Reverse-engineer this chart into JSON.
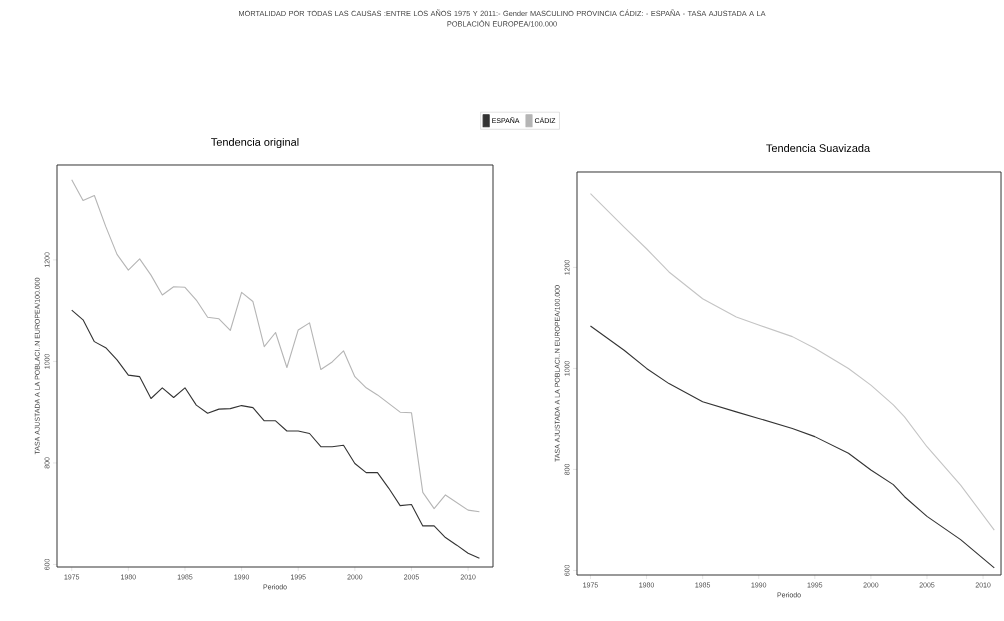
{
  "chart_data": [
    {
      "type": "line",
      "title": "MORTALIDAD POR TODAS LAS CAUSAS :ENTRE LOS AÑOS 1975 Y 2011:- Gender MASCULINO PROVINCIA CÁDIZ: - ESPAÑA - TASA AJUSTADA A LA POBLACIÓN EUROPEA/100.000",
      "subtitle": "Tendencia original",
      "xlabel": "Periodo",
      "ylabel": "TASA AJUSTADA A LA POBLACI..N EUROPEA/100.000",
      "x": [
        1975,
        1976,
        1977,
        1978,
        1979,
        1980,
        1981,
        1982,
        1983,
        1984,
        1985,
        1986,
        1987,
        1988,
        1989,
        1990,
        1991,
        1992,
        1993,
        1994,
        1995,
        1996,
        1997,
        1998,
        1999,
        2000,
        2001,
        2002,
        2003,
        2004,
        2005,
        2006,
        2007,
        2008,
        2009,
        2010,
        2011
      ],
      "series": [
        {
          "name": "ESPAÑA",
          "color": "#333333",
          "values": [
            1101,
            1082,
            1039,
            1027,
            1003,
            973,
            970,
            927,
            948,
            929,
            948,
            914,
            898,
            906,
            907,
            913,
            909,
            883,
            883,
            863,
            863,
            858,
            832,
            832,
            835,
            799,
            781,
            781,
            750,
            716,
            718,
            676,
            676,
            653,
            638,
            622,
            612
          ]
        },
        {
          "name": "CÁDIZ",
          "color": "#b5b5b5",
          "values": [
            1358,
            1317,
            1327,
            1266,
            1211,
            1180,
            1202,
            1170,
            1131,
            1147,
            1146,
            1121,
            1087,
            1084,
            1061,
            1136,
            1118,
            1029,
            1057,
            988,
            1062,
            1076,
            984,
            999,
            1021,
            970,
            948,
            934,
            917,
            900,
            899,
            742,
            710,
            737,
            722,
            707,
            704
          ]
        }
      ],
      "xlim": [
        1973.7,
        2012.2
      ],
      "ylim": [
        595,
        1387
      ],
      "xticks": [
        1975,
        1980,
        1985,
        1990,
        1995,
        2000,
        2005,
        2010
      ],
      "yticks": [
        600,
        800,
        1000,
        1200
      ],
      "legend": "top"
    },
    {
      "type": "line",
      "title": "Tendencia Suavizada",
      "xlabel": "Periodo",
      "ylabel": "TASA AJUSTADA A LA POBLACI..N EUROPEA/100.000",
      "x": [
        1975,
        1978,
        1980,
        1982,
        1985,
        1988,
        1990,
        1993,
        1995,
        1998,
        2000,
        2002,
        2003,
        2005,
        2008,
        2011
      ],
      "series": [
        {
          "color": "#333333",
          "values": [
            1084,
            1036,
            1000,
            970,
            934,
            914,
            901,
            881,
            865,
            832,
            799,
            770,
            746,
            707,
            661,
            605
          ]
        },
        {
          "color": "#c4c4c4",
          "values": [
            1346,
            1280,
            1237,
            1191,
            1138,
            1102,
            1086,
            1063,
            1040,
            1000,
            967,
            928,
            904,
            845,
            769,
            680
          ]
        }
      ],
      "xlim": [
        1973.8,
        2011.6
      ],
      "ylim": [
        591,
        1389
      ],
      "xticks": [
        1975,
        1980,
        1985,
        1990,
        1995,
        2000,
        2005,
        2010
      ],
      "yticks": [
        600,
        800,
        1000,
        1200
      ]
    }
  ]
}
